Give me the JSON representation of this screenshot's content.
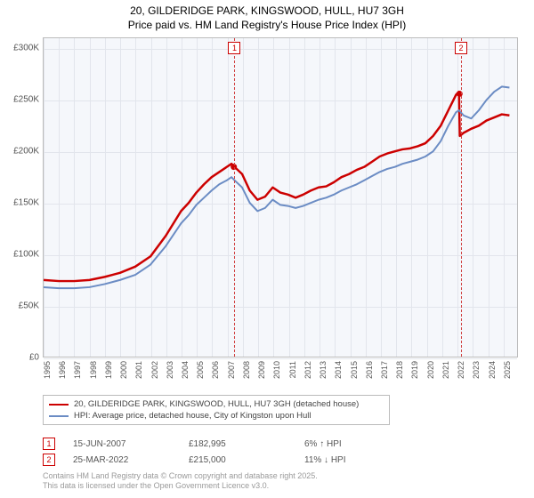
{
  "title_line1": "20, GILDERIDGE PARK, KINGSWOOD, HULL, HU7 3GH",
  "title_line2": "Price paid vs. HM Land Registry's House Price Index (HPI)",
  "chart": {
    "type": "line",
    "background_color": "#f5f7fb",
    "grid_color": "#e2e5ec",
    "border_color": "#bbbbbb",
    "xlim": [
      1995,
      2026
    ],
    "ylim": [
      0,
      310000
    ],
    "y_ticks": [
      0,
      50000,
      100000,
      150000,
      200000,
      250000,
      300000
    ],
    "y_tick_labels": [
      "£0",
      "£50K",
      "£100K",
      "£150K",
      "£200K",
      "£250K",
      "£300K"
    ],
    "x_ticks": [
      1995,
      1996,
      1997,
      1998,
      1999,
      2000,
      2001,
      2002,
      2003,
      2004,
      2005,
      2006,
      2007,
      2008,
      2009,
      2010,
      2011,
      2012,
      2013,
      2014,
      2015,
      2016,
      2017,
      2018,
      2019,
      2020,
      2021,
      2022,
      2023,
      2024,
      2025
    ],
    "series": [
      {
        "name": "price_paid",
        "color": "#cc0000",
        "width": 2.5,
        "points": [
          [
            1995,
            75000
          ],
          [
            1996,
            74000
          ],
          [
            1997,
            74000
          ],
          [
            1998,
            75000
          ],
          [
            1999,
            78000
          ],
          [
            2000,
            82000
          ],
          [
            2001,
            88000
          ],
          [
            2002,
            98000
          ],
          [
            2003,
            118000
          ],
          [
            2004,
            142000
          ],
          [
            2004.5,
            150000
          ],
          [
            2005,
            160000
          ],
          [
            2005.5,
            168000
          ],
          [
            2006,
            175000
          ],
          [
            2006.5,
            180000
          ],
          [
            2007,
            185000
          ],
          [
            2007.3,
            188000
          ],
          [
            2007.5,
            185000
          ],
          [
            2008,
            178000
          ],
          [
            2008.5,
            162000
          ],
          [
            2009,
            153000
          ],
          [
            2009.5,
            156000
          ],
          [
            2010,
            165000
          ],
          [
            2010.5,
            160000
          ],
          [
            2011,
            158000
          ],
          [
            2011.5,
            155000
          ],
          [
            2012,
            158000
          ],
          [
            2012.5,
            162000
          ],
          [
            2013,
            165000
          ],
          [
            2013.5,
            166000
          ],
          [
            2014,
            170000
          ],
          [
            2014.5,
            175000
          ],
          [
            2015,
            178000
          ],
          [
            2015.5,
            182000
          ],
          [
            2016,
            185000
          ],
          [
            2016.5,
            190000
          ],
          [
            2017,
            195000
          ],
          [
            2017.5,
            198000
          ],
          [
            2018,
            200000
          ],
          [
            2018.5,
            202000
          ],
          [
            2019,
            203000
          ],
          [
            2019.5,
            205000
          ],
          [
            2020,
            208000
          ],
          [
            2020.5,
            215000
          ],
          [
            2021,
            225000
          ],
          [
            2021.5,
            240000
          ],
          [
            2022,
            255000
          ],
          [
            2022.2,
            258000
          ],
          [
            2022.25,
            215000
          ],
          [
            2022.5,
            218000
          ],
          [
            2023,
            222000
          ],
          [
            2023.5,
            225000
          ],
          [
            2024,
            230000
          ],
          [
            2024.5,
            233000
          ],
          [
            2025,
            236000
          ],
          [
            2025.5,
            235000
          ]
        ]
      },
      {
        "name": "hpi",
        "color": "#6b8cc4",
        "width": 2,
        "points": [
          [
            1995,
            68000
          ],
          [
            1996,
            67000
          ],
          [
            1997,
            67000
          ],
          [
            1998,
            68000
          ],
          [
            1999,
            71000
          ],
          [
            2000,
            75000
          ],
          [
            2001,
            80000
          ],
          [
            2002,
            90000
          ],
          [
            2003,
            108000
          ],
          [
            2004,
            130000
          ],
          [
            2004.5,
            138000
          ],
          [
            2005,
            148000
          ],
          [
            2005.5,
            155000
          ],
          [
            2006,
            162000
          ],
          [
            2006.5,
            168000
          ],
          [
            2007,
            172000
          ],
          [
            2007.3,
            175000
          ],
          [
            2007.5,
            172000
          ],
          [
            2008,
            165000
          ],
          [
            2008.5,
            150000
          ],
          [
            2009,
            142000
          ],
          [
            2009.5,
            145000
          ],
          [
            2010,
            153000
          ],
          [
            2010.5,
            148000
          ],
          [
            2011,
            147000
          ],
          [
            2011.5,
            145000
          ],
          [
            2012,
            147000
          ],
          [
            2012.5,
            150000
          ],
          [
            2013,
            153000
          ],
          [
            2013.5,
            155000
          ],
          [
            2014,
            158000
          ],
          [
            2014.5,
            162000
          ],
          [
            2015,
            165000
          ],
          [
            2015.5,
            168000
          ],
          [
            2016,
            172000
          ],
          [
            2016.5,
            176000
          ],
          [
            2017,
            180000
          ],
          [
            2017.5,
            183000
          ],
          [
            2018,
            185000
          ],
          [
            2018.5,
            188000
          ],
          [
            2019,
            190000
          ],
          [
            2019.5,
            192000
          ],
          [
            2020,
            195000
          ],
          [
            2020.5,
            200000
          ],
          [
            2021,
            210000
          ],
          [
            2021.5,
            225000
          ],
          [
            2022,
            238000
          ],
          [
            2022.2,
            240000
          ],
          [
            2022.5,
            235000
          ],
          [
            2023,
            232000
          ],
          [
            2023.5,
            240000
          ],
          [
            2024,
            250000
          ],
          [
            2024.5,
            258000
          ],
          [
            2025,
            263000
          ],
          [
            2025.5,
            262000
          ]
        ]
      }
    ],
    "markers": [
      {
        "id": "1",
        "x": 2007.45,
        "dot_y": 185000
      },
      {
        "id": "2",
        "x": 2022.23,
        "dot_y": 256000
      }
    ]
  },
  "legend": {
    "items": [
      {
        "color": "#cc0000",
        "label": "20, GILDERIDGE PARK, KINGSWOOD, HULL, HU7 3GH (detached house)"
      },
      {
        "color": "#6b8cc4",
        "label": "HPI: Average price, detached house, City of Kingston upon Hull"
      }
    ]
  },
  "transactions": [
    {
      "marker": "1",
      "date": "15-JUN-2007",
      "price": "£182,995",
      "diff": "6% ↑ HPI"
    },
    {
      "marker": "2",
      "date": "25-MAR-2022",
      "price": "£215,000",
      "diff": "11% ↓ HPI"
    }
  ],
  "footnote_line1": "Contains HM Land Registry data © Crown copyright and database right 2025.",
  "footnote_line2": "This data is licensed under the Open Government Licence v3.0.",
  "colors": {
    "text_muted": "#555555",
    "text_faint": "#9a9a9a",
    "marker_border": "#cc0000"
  }
}
